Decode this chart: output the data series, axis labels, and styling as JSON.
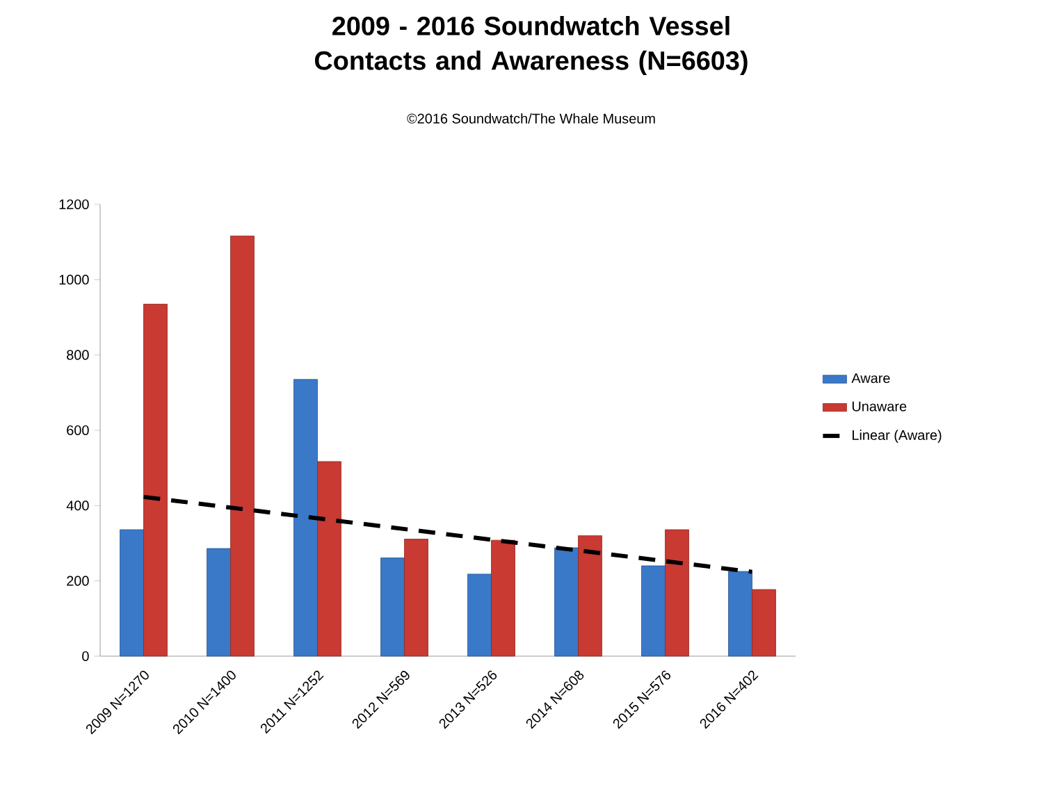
{
  "chart_data": {
    "type": "bar",
    "title": "2009 - 2016 Soundwatch Vessel Contacts and Awareness (N=6603)",
    "subtitle": "©2016 Soundwatch/The Whale Museum",
    "categories": [
      "2009 N=1270",
      "2010 N=1400",
      "2011 N=1252",
      "2012 N=569",
      "2013 N=526",
      "2014 N=608",
      "2015 N=576",
      "2016 N=402"
    ],
    "series": [
      {
        "name": "Aware",
        "color": "#3a78c8",
        "values": [
          336,
          286,
          735,
          261,
          218,
          288,
          240,
          225
        ]
      },
      {
        "name": "Unaware",
        "color": "#c83a32",
        "values": [
          935,
          1116,
          517,
          311,
          308,
          320,
          336,
          177
        ]
      },
      {
        "name": "Linear (Aware)",
        "type": "line",
        "color": "#000000",
        "line_style": "dashed",
        "x": [
          "2009 N=1270",
          "2016 N=402"
        ],
        "values": [
          423,
          224
        ]
      }
    ],
    "ylim": [
      0,
      1200
    ],
    "yticks": [
      0,
      200,
      400,
      600,
      800,
      1000,
      1200
    ],
    "legend": "right"
  }
}
